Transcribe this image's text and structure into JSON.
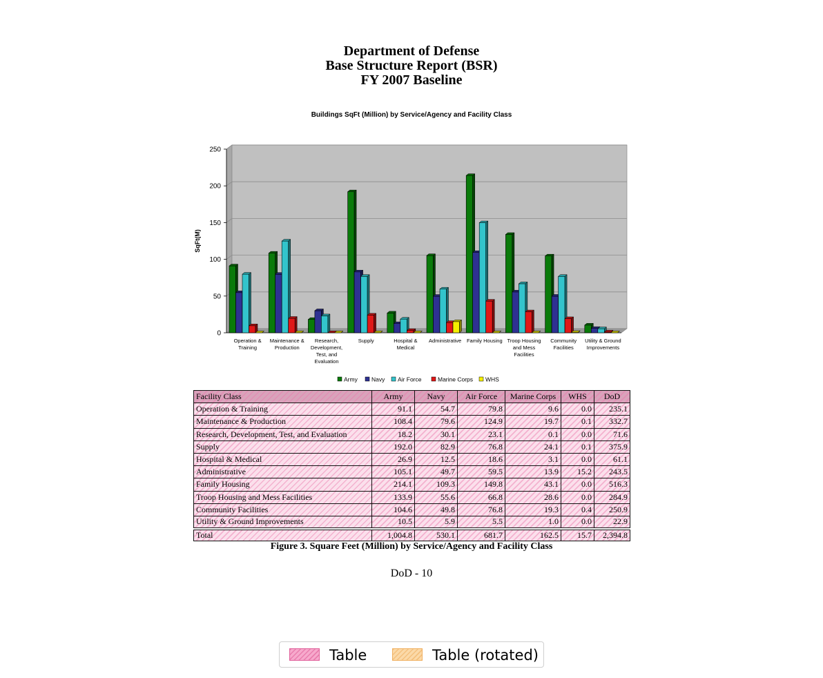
{
  "header": {
    "line1": "Department of Defense",
    "line2": "Base Structure Report (BSR)",
    "line3": "FY 2007 Baseline"
  },
  "chart_data": {
    "type": "bar",
    "title": "Buildings SqFt (Million) by Service/Agency and Facility Class",
    "xlabel": "",
    "ylabel": "SqFt(M)",
    "ylim": [
      0,
      250
    ],
    "yticks": [
      0,
      50,
      100,
      150,
      200,
      250
    ],
    "grid": true,
    "legend_position": "bottom",
    "categories": [
      [
        "Operation &",
        "Training"
      ],
      [
        "Maintenance &",
        "Production"
      ],
      [
        "Research,",
        "Development,",
        "Test, and",
        "Evaluation"
      ],
      [
        "Supply"
      ],
      [
        "Hospital &",
        "Medical"
      ],
      [
        "Administrative"
      ],
      [
        "Family Housing"
      ],
      [
        "Troop Housing",
        "and Mess",
        "Facilities"
      ],
      [
        "Community",
        "Facilities"
      ],
      [
        "Utility & Ground",
        "Improvements"
      ]
    ],
    "series": [
      {
        "name": "Army",
        "color": "#0a7a0a",
        "values": [
          91.1,
          108.4,
          18.2,
          192.0,
          26.9,
          105.1,
          214.1,
          133.9,
          104.6,
          10.5
        ]
      },
      {
        "name": "Navy",
        "color": "#2e3192",
        "values": [
          54.7,
          79.6,
          30.1,
          82.9,
          12.5,
          49.7,
          109.3,
          55.6,
          49.8,
          5.9
        ]
      },
      {
        "name": "Air Force",
        "color": "#33c4cc",
        "values": [
          79.8,
          124.9,
          23.1,
          76.8,
          18.6,
          59.5,
          149.8,
          66.8,
          76.8,
          5.5
        ]
      },
      {
        "name": "Marine Corps",
        "color": "#e01818",
        "values": [
          9.6,
          19.7,
          0.1,
          24.1,
          3.1,
          13.9,
          43.1,
          28.6,
          19.3,
          1.0
        ]
      },
      {
        "name": "WHS",
        "color": "#f5f000",
        "values": [
          0.0,
          0.1,
          0.0,
          0.1,
          0.0,
          15.2,
          0.0,
          0.0,
          0.4,
          0.0
        ]
      }
    ]
  },
  "table": {
    "headers": [
      "Facility Class",
      "Army",
      "Navy",
      "Air Force",
      "Marine Corps",
      "WHS",
      "DoD"
    ],
    "rows": [
      [
        "Operation & Training",
        "91.1",
        "54.7",
        "79.8",
        "9.6",
        "0.0",
        "235.1"
      ],
      [
        "Maintenance & Production",
        "108.4",
        "79.6",
        "124.9",
        "19.7",
        "0.1",
        "332.7"
      ],
      [
        "Research, Development, Test, and Evaluation",
        "18.2",
        "30.1",
        "23.1",
        "0.1",
        "0.0",
        "71.6"
      ],
      [
        "Supply",
        "192.0",
        "82.9",
        "76.8",
        "24.1",
        "0.1",
        "375.9"
      ],
      [
        "Hospital & Medical",
        "26.9",
        "12.5",
        "18.6",
        "3.1",
        "0.0",
        "61.1"
      ],
      [
        "Administrative",
        "105.1",
        "49.7",
        "59.5",
        "13.9",
        "15.2",
        "243.5"
      ],
      [
        "Family Housing",
        "214.1",
        "109.3",
        "149.8",
        "43.1",
        "0.0",
        "516.3"
      ],
      [
        "Troop Housing and Mess Facilities",
        "133.9",
        "55.6",
        "66.8",
        "28.6",
        "0.0",
        "284.9"
      ],
      [
        "Community Facilities",
        "104.6",
        "49.8",
        "76.8",
        "19.3",
        "0.4",
        "250.9"
      ],
      [
        "Utility & Ground Improvements",
        "10.5",
        "5.9",
        "5.5",
        "1.0",
        "0.0",
        "22.9"
      ]
    ],
    "total": [
      "Total",
      "1,004.8",
      "530.1",
      "681.7",
      "162.5",
      "15.7",
      "2,394.8"
    ]
  },
  "caption": "Figure 3.  Square Feet (Million) by Service/Agency and Facility Class",
  "page_number": "DoD - 10",
  "overlay_legend": {
    "items": [
      {
        "label": "Table",
        "color": "#f7a9cc"
      },
      {
        "label": "Table (rotated)",
        "color": "#fbd9a8"
      }
    ]
  }
}
